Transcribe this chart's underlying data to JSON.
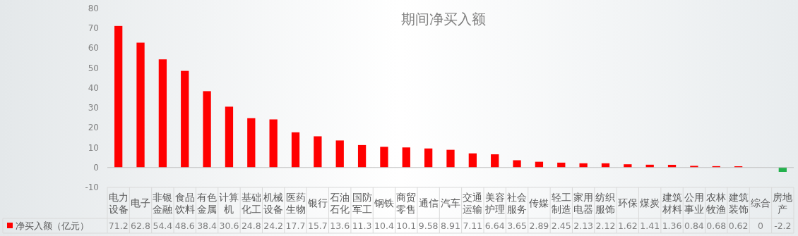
{
  "chart_data": {
    "type": "bar",
    "title": "期间净买入额",
    "categories": [
      "电力设备",
      "电子",
      "非银金融",
      "食品饮料",
      "有色金属",
      "计算机",
      "基础化工",
      "机械设备",
      "医药生物",
      "银行",
      "石油石化",
      "国防军工",
      "钢铁",
      "商贸零售",
      "通信",
      "汽车",
      "交通运输",
      "美容护理",
      "社会服务",
      "传媒",
      "轻工制造",
      "家用电器",
      "纺织服饰",
      "环保",
      "煤炭",
      "建筑材料",
      "公用事业",
      "农林牧渔",
      "建筑装饰",
      "综合",
      "房地产"
    ],
    "series": [
      {
        "name": "净买入额（亿元）",
        "color": "#ff0000",
        "colors": [
          "#ff0000",
          "#ff0000",
          "#ff0000",
          "#ff0000",
          "#ff0000",
          "#ff0000",
          "#ff0000",
          "#ff0000",
          "#ff0000",
          "#ff0000",
          "#ff0000",
          "#ff0000",
          "#ff0000",
          "#ff0000",
          "#ff0000",
          "#ff0000",
          "#ff0000",
          "#ff0000",
          "#ff0000",
          "#ff0000",
          "#ff0000",
          "#ff0000",
          "#ff0000",
          "#ff0000",
          "#ff0000",
          "#ff0000",
          "#ff0000",
          "#ff0000",
          "#ff0000",
          "#ff0000",
          "#22b14c"
        ],
        "values": [
          71.2,
          62.8,
          54.4,
          48.6,
          38.4,
          30.6,
          24.8,
          24.2,
          17.7,
          15.7,
          13.6,
          11.3,
          10.4,
          10.1,
          9.58,
          8.91,
          7.11,
          6.64,
          3.65,
          2.89,
          2.45,
          2.13,
          2.12,
          1.62,
          1.41,
          1.36,
          0.84,
          0.68,
          0.62,
          0,
          -2.2
        ]
      }
    ],
    "ylim": [
      -10,
      80
    ],
    "yticks": [
      -10,
      0,
      10,
      20,
      30,
      40,
      50,
      60,
      70,
      80
    ],
    "data_labels": true,
    "legend": "bottom left"
  }
}
